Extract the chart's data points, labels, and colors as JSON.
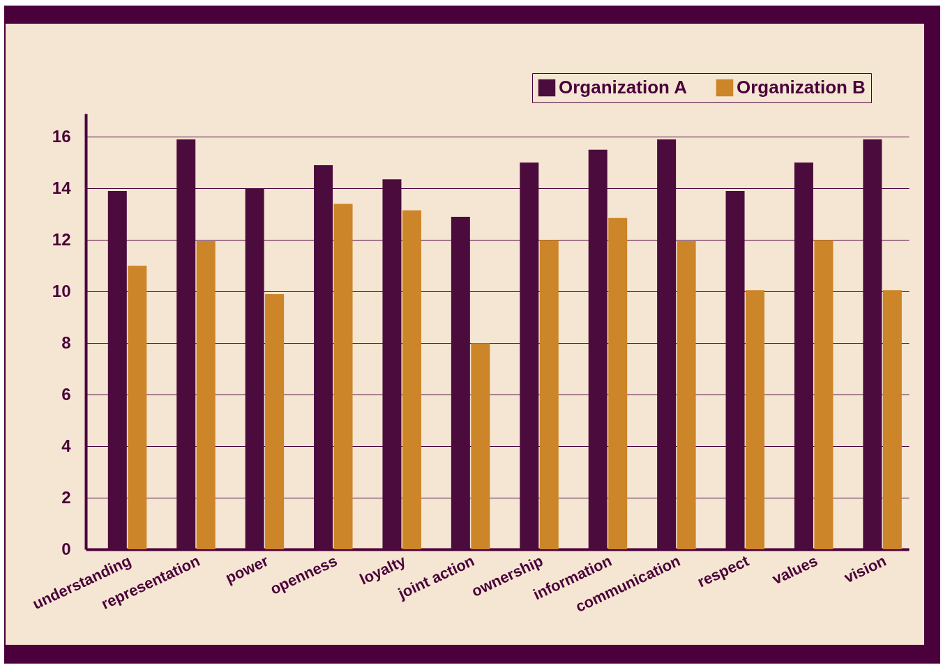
{
  "chart_data": {
    "type": "bar",
    "categories": [
      "understanding",
      "representation",
      "power",
      "openness",
      "loyalty",
      "joint action",
      "ownership",
      "information",
      "communication",
      "respect",
      "values",
      "vision"
    ],
    "series": [
      {
        "name": "Organization A",
        "color": "#4b0c3d",
        "values": [
          13.9,
          15.9,
          14.0,
          14.9,
          14.35,
          12.9,
          15.0,
          15.5,
          15.9,
          13.9,
          15.0,
          15.9
        ]
      },
      {
        "name": "Organization B",
        "color": "#cc8528",
        "values": [
          11.0,
          11.95,
          9.9,
          13.4,
          13.15,
          8.0,
          12.0,
          12.85,
          11.95,
          10.05,
          12.0,
          10.05
        ]
      }
    ],
    "ylim": [
      0,
      16.9
    ],
    "yticks": [
      0,
      2,
      4,
      6,
      8,
      10,
      12,
      14,
      16
    ],
    "grid": "y",
    "legend": "top right"
  }
}
